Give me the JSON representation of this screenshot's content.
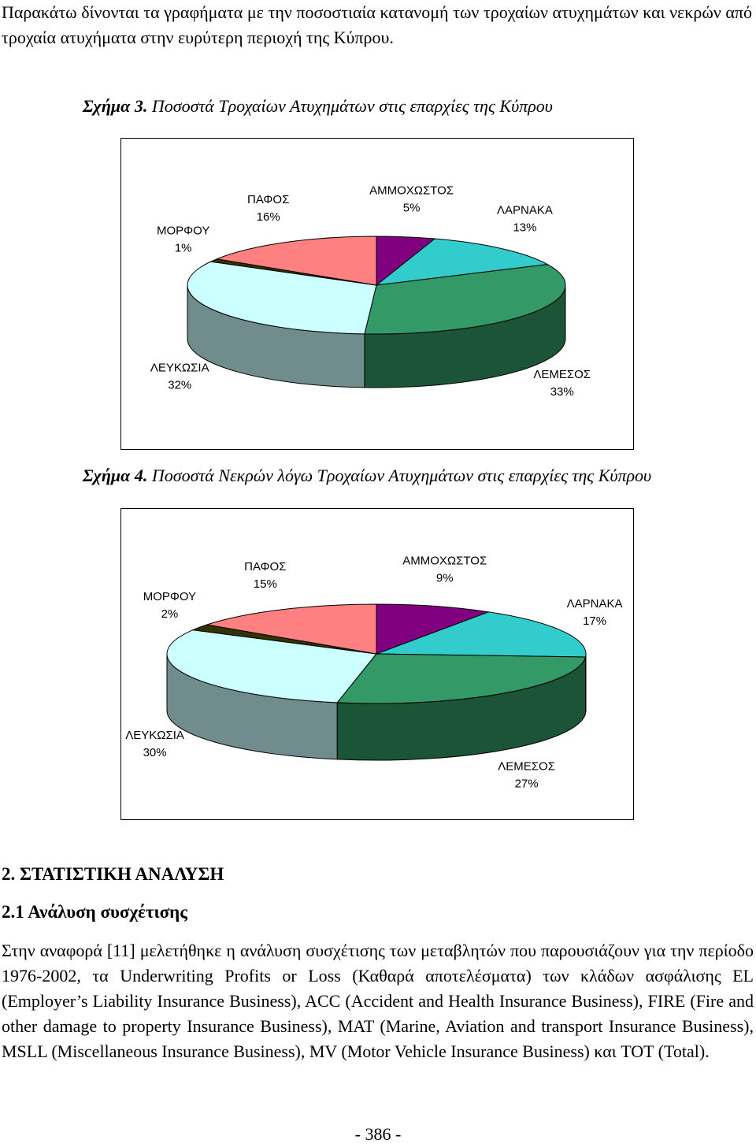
{
  "intro": "Παρακάτω δίνονται τα γραφήματα με την ποσοστιαία κατανομή των τροχαίων ατυχημάτων και νεκρών από τροχαία ατυχήματα στην ευρύτερη περιοχή της Κύπρου.",
  "chart_data": [
    {
      "type": "pie",
      "label": "Σχήμα 3.",
      "title": "Ποσοστά Τροχαίων Ατυχημάτων στις επαρχίες της Κύπρου",
      "categories": [
        "ΑΜΜΟΧΩΣΤΟΣ",
        "ΛΑΡΝΑΚΑ",
        "ΛΕΜΕΣΟΣ",
        "ΛΕΥΚΩΣΙΑ",
        "ΜΟΡΦΟΥ",
        "ΠΑΦΟΣ"
      ],
      "values": [
        5,
        13,
        33,
        32,
        1,
        16
      ],
      "value_labels": [
        "5%",
        "13%",
        "33%",
        "32%",
        "1%",
        "16%"
      ],
      "colors": [
        "#800080",
        "#33cccc",
        "#339966",
        "#ccffff",
        "#333300",
        "#ff8080"
      ]
    },
    {
      "type": "pie",
      "label": "Σχήμα 4.",
      "title": "Ποσοστά Νεκρών λόγω Τροχαίων Ατυχημάτων στις επαρχίες της Κύπρου",
      "categories": [
        "ΑΜΜΟΧΩΣΤΟΣ",
        "ΛΑΡΝΑΚΑ",
        "ΛΕΜΕΣΟΣ",
        "ΛΕΥΚΩΣΙΑ",
        "ΜΟΡΦΟΥ",
        "ΠΑΦΟΣ"
      ],
      "values": [
        9,
        17,
        27,
        30,
        2,
        15
      ],
      "value_labels": [
        "9%",
        "17%",
        "27%",
        "30%",
        "2%",
        "15%"
      ],
      "colors": [
        "#800080",
        "#33cccc",
        "#339966",
        "#ccffff",
        "#333300",
        "#ff8080"
      ]
    }
  ],
  "section": {
    "heading": "2. ΣΤΑΤΙΣΤΙΚΗ ΑΝΑΛΥΣΗ",
    "subheading": "2.1 Ανάλυση συσχέτισης",
    "paragraph": "Στην αναφορά [11] μελετήθηκε η ανάλυση συσχέτισης των μεταβλητών που παρουσιάζουν για την περίοδο 1976-2002, τα Underwriting Profits or Loss (Καθαρά αποτελέσματα) των κλάδων ασφάλισης EL (Employer’s Liability Insurance Business), ACC (Accident and Health Insurance Business), FIRE (Fire and other damage to property Insurance Business), MAT (Marine, Aviation and transport Insurance Business), MSLL (Miscellaneous Insurance Business), MV (Motor Vehicle Insurance Business) και TOT (Total)."
  },
  "footer": "- 386 -"
}
